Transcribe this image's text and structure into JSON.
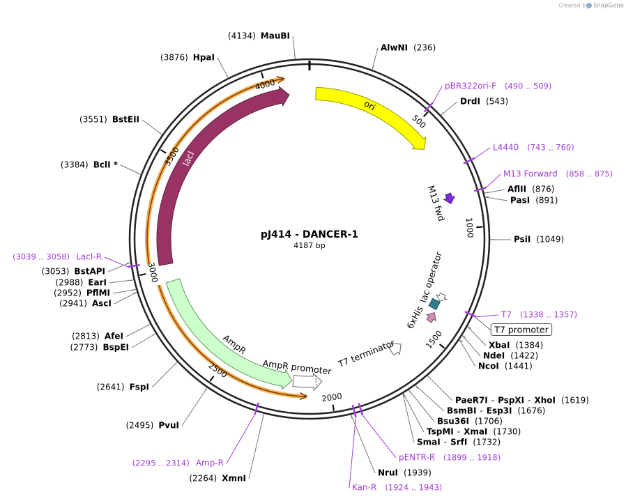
{
  "watermark": {
    "prefix": "Created by",
    "brand": "SnapGene"
  },
  "map": {
    "name": "pJ414 - DANCER-1",
    "length": "4187 bp",
    "ticks": [
      "500",
      "1000",
      "1500",
      "2000",
      "2500",
      "3000",
      "3500",
      "4000"
    ],
    "name_separator": "-",
    "features": [
      {
        "label": "ori"
      },
      {
        "label": "lacI"
      },
      {
        "label": "AmpR"
      },
      {
        "label": "AmpR promoter"
      },
      {
        "label": "T7 terminator"
      },
      {
        "label": "6xHis"
      },
      {
        "label": "lac operator"
      },
      {
        "label": "M13 fwd"
      },
      {
        "label": "T7 promoter"
      }
    ],
    "sites": [
      {
        "names": [
          "MauBI"
        ],
        "position": "(4134)"
      },
      {
        "names": [
          "AlwNI"
        ],
        "position": "(236)"
      },
      {
        "names": [
          "DrdI"
        ],
        "position": "(543)"
      },
      {
        "names": [
          "AflII"
        ],
        "position": "(876)"
      },
      {
        "names": [
          "PasI"
        ],
        "position": "(891)"
      },
      {
        "names": [
          "PsiI"
        ],
        "position": "(1049)"
      },
      {
        "names": [
          "XbaI"
        ],
        "position": "(1384)"
      },
      {
        "names": [
          "NdeI"
        ],
        "position": "(1422)"
      },
      {
        "names": [
          "NcoI"
        ],
        "position": "(1441)"
      },
      {
        "names": [
          "PaeR7I",
          "PspXI",
          "XhoI"
        ],
        "position": "(1619)"
      },
      {
        "names": [
          "BsmBI",
          "Esp3I"
        ],
        "position": "(1676)"
      },
      {
        "names": [
          "Bsu36I"
        ],
        "position": "(1706)"
      },
      {
        "names": [
          "TspMI",
          "XmaI"
        ],
        "position": "(1730)"
      },
      {
        "names": [
          "SmaI",
          "SrfI"
        ],
        "position": "(1732)"
      },
      {
        "names": [
          "NruI"
        ],
        "position": "(1939)"
      },
      {
        "names": [
          "XmnI"
        ],
        "position": "(2264)"
      },
      {
        "names": [
          "PvuI"
        ],
        "position": "(2495)"
      },
      {
        "names": [
          "FspI"
        ],
        "position": "(2641)"
      },
      {
        "names": [
          "BspEI"
        ],
        "position": "(2773)"
      },
      {
        "names": [
          "AfeI"
        ],
        "position": "(2813)"
      },
      {
        "names": [
          "AscI"
        ],
        "position": "(2941)"
      },
      {
        "names": [
          "PflMI"
        ],
        "position": "(2952)"
      },
      {
        "names": [
          "EarI"
        ],
        "position": "(2988)"
      },
      {
        "names": [
          "BstAPI"
        ],
        "position": "(3053)"
      },
      {
        "names": [
          "BclI *"
        ],
        "position": "(3384)"
      },
      {
        "names": [
          "BstEII"
        ],
        "position": "(3551)"
      },
      {
        "names": [
          "HpaI"
        ],
        "position": "(3876)"
      }
    ],
    "primers": [
      {
        "name": "pBR322ori-F",
        "range": "(490 .. 509)"
      },
      {
        "name": "L4440",
        "range": "(743 .. 760)"
      },
      {
        "name": "M13 Forward",
        "range": "(858 .. 875)"
      },
      {
        "name": "T7",
        "range": "(1338 .. 1357)"
      },
      {
        "name": "pENTR-R",
        "range": "(1899 .. 1918)"
      },
      {
        "name": "Kan-R",
        "range": "(1924 .. 1943)"
      },
      {
        "name": "Amp-R",
        "range": "(2295 .. 2314)"
      },
      {
        "name": "LacI-R",
        "range": "(3039 .. 3058)"
      }
    ]
  }
}
